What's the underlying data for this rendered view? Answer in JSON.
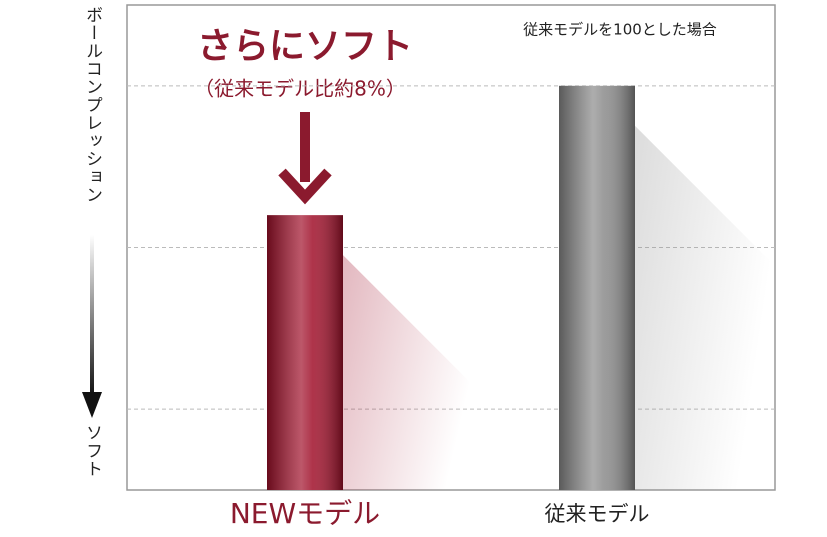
{
  "chart_data": {
    "type": "bar",
    "note": "従来モデルを100とした場合",
    "annotation": "さらにソフト",
    "annotation_sub": "（従来モデル比約8%）",
    "y_label_top": "ボールコンプレッション",
    "y_label_bottom": "ソフト",
    "categories": [
      "NEWモデル",
      "従来モデル"
    ],
    "values": [
      92,
      100
    ],
    "colors": [
      "#a0102a",
      "#8a8a8a"
    ],
    "ylim": [
      75,
      105
    ],
    "yticks": [
      80,
      90,
      100
    ],
    "grid": true
  }
}
